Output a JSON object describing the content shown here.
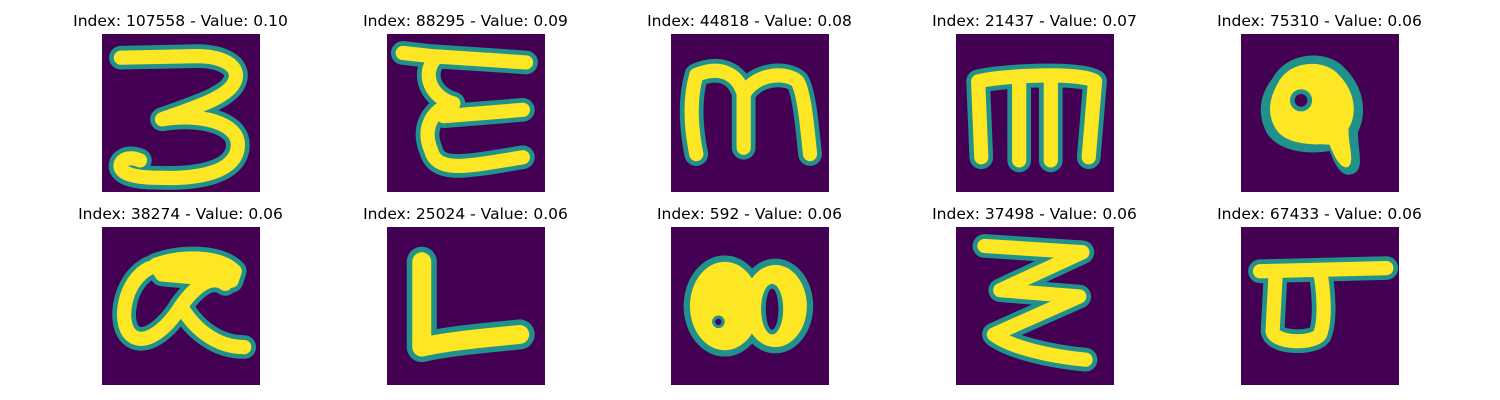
{
  "grid": [
    {
      "title": "Index: 107558 - Value: 0.10",
      "glyph": "three-script"
    },
    {
      "title": "Index: 88295 - Value: 0.09",
      "glyph": "epsilon-like"
    },
    {
      "title": "Index: 44818 - Value: 0.08",
      "glyph": "m-rounded"
    },
    {
      "title": "Index: 21437 - Value: 0.07",
      "glyph": "m-square"
    },
    {
      "title": "Index: 75310 - Value: 0.06",
      "glyph": "blob-loop"
    },
    {
      "title": "Index: 38274 - Value: 0.06",
      "glyph": "alpha-loop"
    },
    {
      "title": "Index: 25024 - Value: 0.06",
      "glyph": "l-shape"
    },
    {
      "title": "Index: 592 - Value: 0.06",
      "glyph": "double-blob"
    },
    {
      "title": "Index: 37498 - Value: 0.06",
      "glyph": "zigzag"
    },
    {
      "title": "Index: 67433 - Value: 0.06",
      "glyph": "loop-with-bar"
    }
  ]
}
